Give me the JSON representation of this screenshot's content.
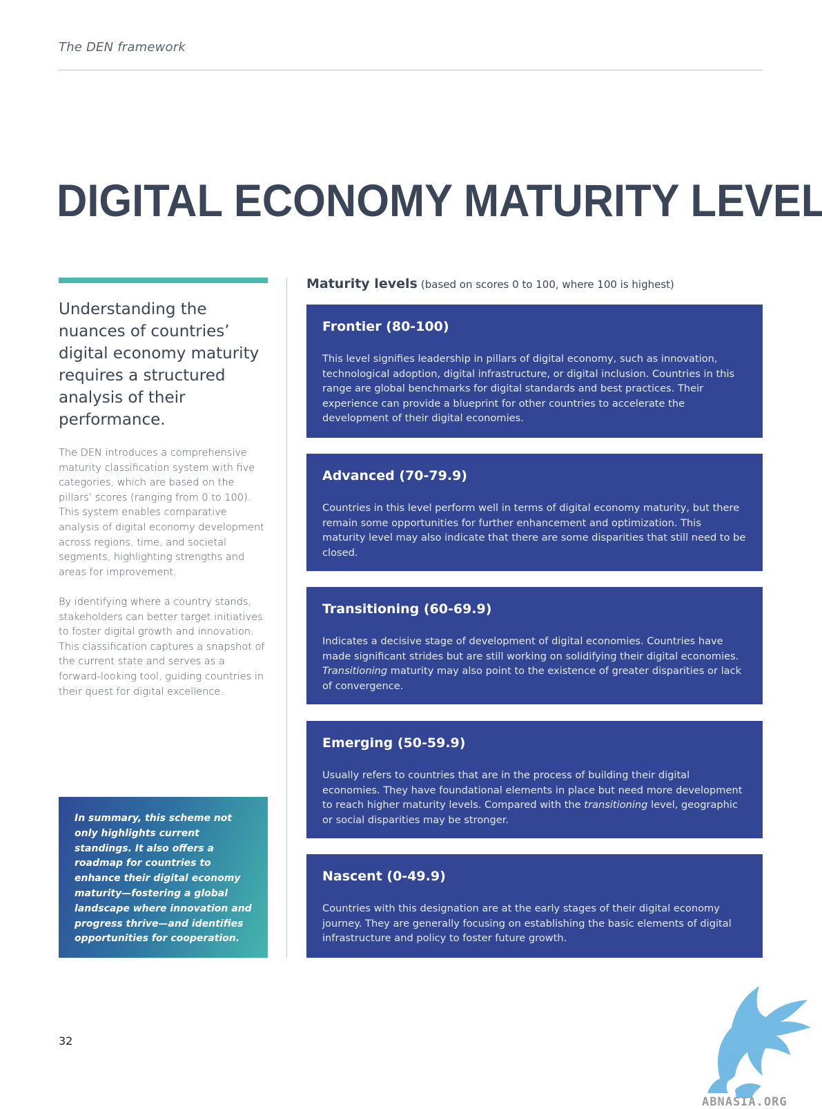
{
  "header": {
    "title": "The DEN framework"
  },
  "page_title": "DIGITAL ECONOMY MATURITY LEVELS",
  "left": {
    "lead": "Understanding the nuances of countries’ digital economy maturity requires a structured analysis of their performance.",
    "paragraphs": [
      "The DEN introduces a comprehensive maturity classification system with five categories, which are based on the pillars’ scores (ranging from 0 to 100). This system enables comparative analysis of digital economy development across regions, time, and societal segments, highlighting strengths and areas for improvement.",
      "By identifying where a country stands, stakeholders can better target initiatives to foster digital growth and innovation. This classification captures a snapshot of the current state and serves as a forward-looking tool, guiding countries in their quest for digital excellence."
    ],
    "summary": "In summary, this scheme not only highlights current standings. It also offers a roadmap for countries to enhance their digital economy maturity—fostering a global landscape where innovation and progress thrive—and identifies opportunities for cooperation."
  },
  "maturity": {
    "heading": "Maturity levels",
    "note": "(based on scores 0 to 100, where 100 is highest)",
    "levels": [
      {
        "name": "Frontier (80-100)",
        "description": "This level signifies leadership in pillars of digital economy, such as innovation, technological adoption, digital infrastructure, or digital inclusion. Countries in this range are global benchmarks for digital standards and best practices. Their experience can provide a blueprint for other countries to accelerate the development of their digital economies."
      },
      {
        "name": "Advanced (70-79.9)",
        "description": "Countries in this level perform well in terms of digital economy maturity, but there remain some opportunities for further enhancement and optimization. This maturity level may also indicate that there are some disparities that still need to be closed."
      },
      {
        "name": "Transitioning (60-69.9)",
        "description_before": "Indicates a decisive stage of development of digital economies. Countries have made significant strides but are still working on solidifying their digital economies. ",
        "description_em": "Transitioning",
        "description_after": " maturity may also point to the existence of greater disparities or lack of convergence."
      },
      {
        "name": "Emerging (50-59.9)",
        "description_before": "Usually refers to countries that are in the process of building their digital economies. They have foundational elements in place but need more development to reach higher maturity levels. Compared with the ",
        "description_em": "transitioning",
        "description_after": " level, geographic or social disparities may be stronger."
      },
      {
        "name": "Nascent (0-49.9)",
        "description": "Countries with this designation are at the early stages of their digital economy journey. They are generally focusing on establishing the basic elements of digital infrastructure and policy to foster future growth."
      }
    ]
  },
  "page_number": "32",
  "watermark": {
    "text": "ABNASIA.ORG",
    "icon": "griffin-logo",
    "color": "#5aaee0"
  }
}
